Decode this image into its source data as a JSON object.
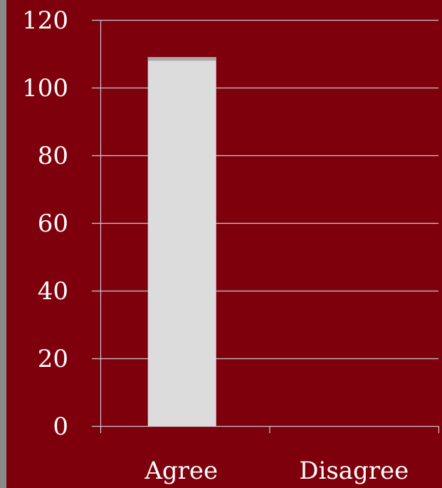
{
  "chart_data": {
    "type": "bar",
    "categories": [
      "Agree",
      "Disagree"
    ],
    "values": [
      109,
      0
    ],
    "ylim": [
      0,
      120
    ],
    "yticks": [
      0,
      20,
      40,
      60,
      80,
      100,
      120
    ],
    "title": "",
    "xlabel": "",
    "ylabel": "",
    "grid": true,
    "colors": {
      "background": "#7f000d",
      "bar": "#dcdcdc",
      "bar_top": "#a9a9a9",
      "grid": "#c9c9c9",
      "text": "#ffffff",
      "left_edge": "#8a8a8a"
    }
  }
}
